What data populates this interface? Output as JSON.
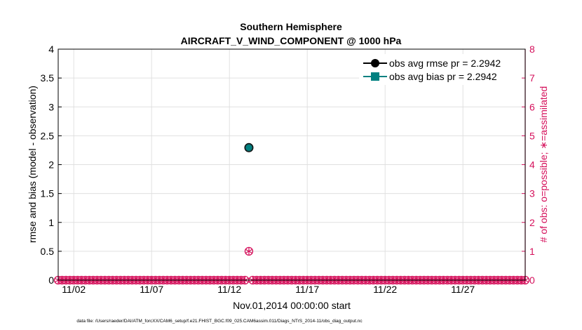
{
  "chart_data": {
    "type": "scatter",
    "title_lines": [
      "Southern Hemisphere",
      "AIRCRAFT_V_WIND_COMPONENT @ 1000 hPa"
    ],
    "xlabel": "Nov.01,2014 00:00:00 start",
    "ylabel_left": "rmse and bias (model - observation)",
    "ylabel_right": "# of obs: o=possible; ∗=assimilated",
    "footer": "data file: /Users/raeder/DAI/ATM_forcXX/CAM6_setup/f.e21.FHIST_BGC.f09_025.CAM6assim.011/Diags_NTrS_2014-11/obs_diag_output.nc",
    "x_range_days": [
      0.5,
      30.5
    ],
    "x_ticks": [
      {
        "day": 1.5,
        "label": "11/02"
      },
      {
        "day": 6.5,
        "label": "11/07"
      },
      {
        "day": 11.5,
        "label": "11/12"
      },
      {
        "day": 16.5,
        "label": "11/17"
      },
      {
        "day": 21.5,
        "label": "11/22"
      },
      {
        "day": 26.5,
        "label": "11/27"
      }
    ],
    "y_left": {
      "range": [
        0,
        4
      ],
      "ticks": [
        "0",
        "0.5",
        "1",
        "1.5",
        "2",
        "2.5",
        "3",
        "3.5",
        "4"
      ]
    },
    "y_right": {
      "range": [
        0,
        8
      ],
      "ticks": [
        "0",
        "1",
        "2",
        "3",
        "4",
        "5",
        "6",
        "7",
        "8"
      ]
    },
    "series": [
      {
        "name": "obs avg rmse pr = 2.2942",
        "color": "#000000",
        "axis": "left",
        "points": [
          {
            "day": 12.75,
            "value": 2.2942
          }
        ]
      },
      {
        "name": "obs avg bias pr = 2.2942",
        "color": "#008080",
        "axis": "left",
        "points": [
          {
            "day": 12.75,
            "value": 2.2942
          }
        ]
      },
      {
        "name": "obs possible",
        "color": "#d5105b",
        "axis": "right",
        "marker": "o",
        "days_start": 0.5,
        "days_end": 30.5,
        "step": 0.25,
        "nonzero": [
          {
            "day": 12.75,
            "count": 1
          }
        ]
      },
      {
        "name": "obs assimilated",
        "color": "#d5105b",
        "axis": "right",
        "marker": "*",
        "days_start": 0.5,
        "days_end": 30.5,
        "step": 0.25,
        "nonzero": [
          {
            "day": 12.75,
            "count": 1
          }
        ]
      }
    ],
    "legend": {
      "placement": "top-right",
      "entries": [
        "obs avg rmse pr = 2.2942",
        "obs avg bias pr = 2.2942"
      ]
    },
    "colors": {
      "axis": "#000000",
      "right_axis": "#d5105b",
      "grid": "#e0e0e0",
      "rmse": "#000000",
      "bias": "#008080",
      "obs": "#d5105b"
    }
  }
}
